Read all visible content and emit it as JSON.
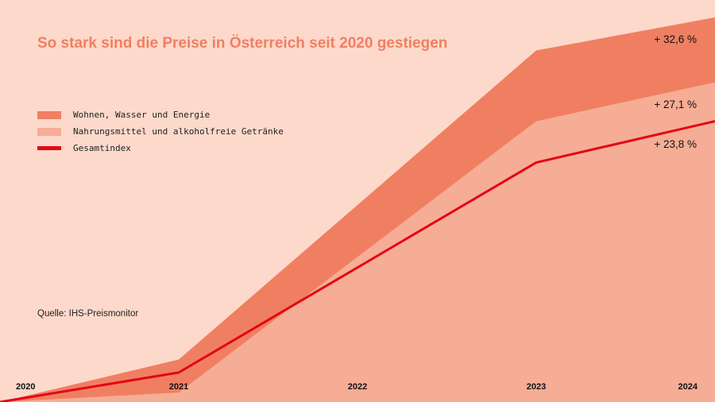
{
  "chart_data": {
    "type": "area",
    "title": "So stark sind die Preise in Österreich seit 2020 gestiegen",
    "source": "Quelle: IHS-Preismonitor",
    "x": [
      2020,
      2021,
      2023,
      2024
    ],
    "x_ticks": [
      "2020",
      "2021",
      "2022",
      "2023",
      "2024"
    ],
    "ylim": [
      0,
      34
    ],
    "grid": false,
    "legend_position": "top-left",
    "series": [
      {
        "name": "Wohnen, Wasser und Energie",
        "kind": "area",
        "color": "#f07f62",
        "values": [
          0,
          3.6,
          29.8,
          32.6
        ],
        "label": "+ 32,6 %"
      },
      {
        "name": "Nahrungsmittel und alkoholfreie Getränke",
        "kind": "area",
        "color": "#f6ad95",
        "values": [
          0,
          0.8,
          23.8,
          27.1
        ],
        "label": "+ 27,1 %"
      },
      {
        "name": "Gesamtindex",
        "kind": "line",
        "color": "#e30613",
        "values": [
          0,
          2.5,
          20.3,
          23.8
        ],
        "label": "+ 23,8 %"
      }
    ]
  },
  "colors": {
    "background": "#fdd9cb",
    "title": "#f07f62"
  }
}
